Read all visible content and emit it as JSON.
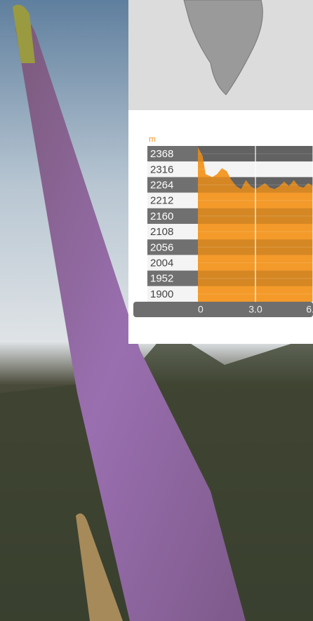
{
  "chart_data": {
    "type": "area",
    "y_unit": "m",
    "color": "#f39a2a",
    "x": [
      0,
      0.25,
      0.4,
      0.75,
      1.0,
      1.25,
      1.5,
      1.75,
      2.0,
      2.25,
      2.5,
      2.75,
      3.0,
      3.25,
      3.5,
      3.75,
      4.0,
      4.25,
      4.5,
      4.75,
      5.0,
      5.25,
      5.5,
      5.75,
      6.0
    ],
    "values": [
      2390,
      2360,
      2300,
      2290,
      2300,
      2320,
      2310,
      2280,
      2260,
      2250,
      2280,
      2260,
      2250,
      2260,
      2270,
      2255,
      2250,
      2260,
      2275,
      2260,
      2280,
      2260,
      2255,
      2270,
      2260
    ],
    "xlim": [
      0,
      6
    ],
    "xticks": [
      0,
      {
        "value": 3,
        "label": "3.0"
      },
      {
        "value": 6,
        "label": "6.0"
      }
    ],
    "ylim": [
      1874,
      2394
    ],
    "yticks": [
      2368,
      2316,
      2264,
      2212,
      2160,
      2108,
      2056,
      2004,
      1952,
      1900
    ]
  }
}
